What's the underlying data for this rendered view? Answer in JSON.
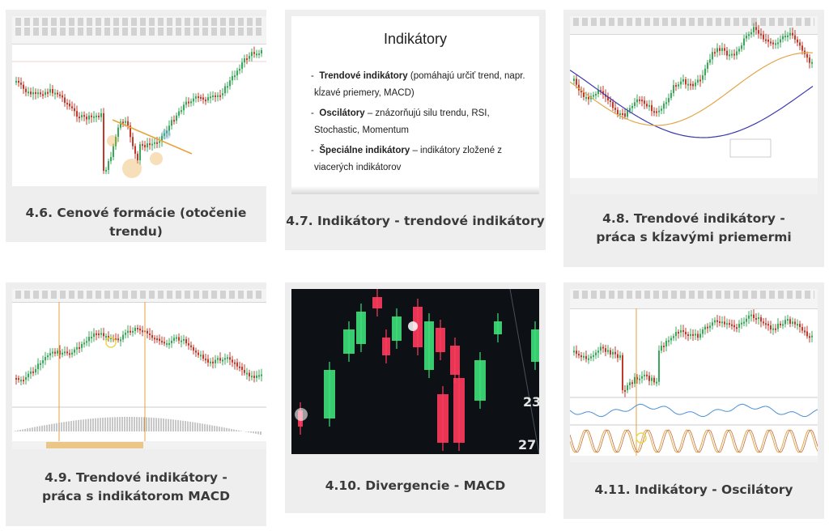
{
  "cards": [
    {
      "caption": "4.6. Cenové formácie (otočenie trendu)"
    },
    {
      "caption": "4.7. Indikátory - trendové indikátory"
    },
    {
      "caption": "4.8. Trendové indikátory - práca s kĺzavými priemermi"
    },
    {
      "caption": "4.9. Trendové indikátory - práca s indikátorom MACD"
    },
    {
      "caption": "4.10. Divergencie - MACD"
    },
    {
      "caption": "4.11. Indikátory - Oscilátory"
    }
  ],
  "slide": {
    "title": "Indikátory",
    "b1_bold": "Trendové indikátory",
    "b1_rest": " (pomáhajú určiť trend, napr. kĺzavé priemery, MACD)",
    "b2_bold": "Oscilátory",
    "b2_rest": " – znázorňujú silu trendu, RSI, Stochastic, Momentum",
    "b3_bold": "Špeciálne indikátory",
    "b3_rest": " – indikátory zložené z viacerých indikátorov"
  },
  "photo": {
    "label_top": "23",
    "label_bottom": "27"
  },
  "colors": {
    "card_bg": "#eeeeee",
    "bull": "#3aa85a",
    "bear": "#c0392b",
    "neon_green": "#3ee07a",
    "neon_red": "#ff3b5c",
    "trendline": "#e8a33a",
    "ma_blue": "#3b3bb0",
    "ma_orange": "#e2a64a"
  }
}
